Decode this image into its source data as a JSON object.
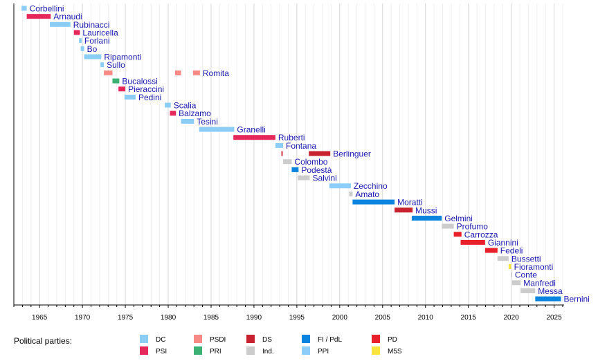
{
  "chart_data": {
    "type": "timeline",
    "xlim": [
      1962,
      2026
    ],
    "x_ticks": [
      1965,
      1970,
      1975,
      1980,
      1985,
      1990,
      1995,
      2000,
      2005,
      2010,
      2015,
      2020,
      2025
    ],
    "grid": "vertical, yearly",
    "parties": {
      "DC": "#8ccdf5",
      "PSI": "#e5275a",
      "PSDI": "#f88a85",
      "PRI": "#3bb273",
      "DS": "#c8212f",
      "Ind.": "#cccccc",
      "FI / PdL": "#0b84e0",
      "PPI": "#8ccdfa",
      "PD": "#e8202a",
      "M5S": "#fae33c"
    },
    "rows": [
      {
        "name": "Corbellini",
        "terms": [
          {
            "start": 1962.9,
            "end": 1963.5,
            "party": "DC"
          }
        ]
      },
      {
        "name": "Arnaudi",
        "terms": [
          {
            "start": 1963.5,
            "end": 1966.3,
            "party": "PSI"
          }
        ]
      },
      {
        "name": "Rubinacci",
        "terms": [
          {
            "start": 1966.2,
            "end": 1968.6,
            "party": "DC"
          }
        ]
      },
      {
        "name": "Lauricella",
        "terms": [
          {
            "start": 1969.0,
            "end": 1969.7,
            "party": "PSI"
          }
        ]
      },
      {
        "name": "Forlani",
        "terms": [
          {
            "start": 1969.6,
            "end": 1969.9,
            "party": "DC"
          }
        ]
      },
      {
        "name": "Bo",
        "terms": [
          {
            "start": 1969.8,
            "end": 1970.2,
            "party": "DC"
          }
        ]
      },
      {
        "name": "Ripamonti",
        "terms": [
          {
            "start": 1970.2,
            "end": 1972.2,
            "party": "DC"
          }
        ]
      },
      {
        "name": "Sullo",
        "terms": [
          {
            "start": 1972.1,
            "end": 1972.5,
            "party": "DC"
          }
        ]
      },
      {
        "name": "Romita",
        "terms": [
          {
            "start": 1972.5,
            "end": 1973.5,
            "party": "PSDI"
          },
          {
            "start": 1980.8,
            "end": 1981.5,
            "party": "PSDI"
          },
          {
            "start": 1982.9,
            "end": 1983.7,
            "party": "PSDI"
          }
        ]
      },
      {
        "name": "Bucalossi",
        "terms": [
          {
            "start": 1973.5,
            "end": 1974.3,
            "party": "PRI"
          }
        ]
      },
      {
        "name": "Pieraccini",
        "terms": [
          {
            "start": 1974.2,
            "end": 1975.0,
            "party": "PSI"
          }
        ]
      },
      {
        "name": "Pedini",
        "terms": [
          {
            "start": 1974.9,
            "end": 1976.2,
            "party": "DC"
          }
        ]
      },
      {
        "name": "Scalia",
        "terms": [
          {
            "start": 1979.6,
            "end": 1980.3,
            "party": "DC"
          }
        ]
      },
      {
        "name": "Balzamo",
        "terms": [
          {
            "start": 1980.2,
            "end": 1980.9,
            "party": "PSI"
          }
        ]
      },
      {
        "name": "Tesini",
        "terms": [
          {
            "start": 1981.5,
            "end": 1983.0,
            "party": "DC"
          }
        ]
      },
      {
        "name": "Granelli",
        "terms": [
          {
            "start": 1983.6,
            "end": 1987.7,
            "party": "DC"
          }
        ]
      },
      {
        "name": "Ruberti",
        "terms": [
          {
            "start": 1987.6,
            "end": 1992.5,
            "party": "PSI"
          }
        ]
      },
      {
        "name": "Fontana",
        "terms": [
          {
            "start": 1992.5,
            "end": 1993.4,
            "party": "DC"
          }
        ]
      },
      {
        "name": "Berlinguer",
        "terms": [
          {
            "start": 1993.2,
            "end": 1993.35,
            "party": "DS"
          },
          {
            "start": 1996.4,
            "end": 1998.9,
            "party": "DS"
          }
        ]
      },
      {
        "name": "Colombo",
        "terms": [
          {
            "start": 1993.4,
            "end": 1994.4,
            "party": "Ind."
          }
        ]
      },
      {
        "name": "Podestà",
        "terms": [
          {
            "start": 1994.4,
            "end": 1995.2,
            "party": "FI / PdL"
          }
        ]
      },
      {
        "name": "Salvini",
        "terms": [
          {
            "start": 1995.1,
            "end": 1996.5,
            "party": "Ind."
          }
        ]
      },
      {
        "name": "Zecchino",
        "terms": [
          {
            "start": 1998.8,
            "end": 2001.3,
            "party": "PPI"
          }
        ]
      },
      {
        "name": "Amato",
        "terms": [
          {
            "start": 2001.1,
            "end": 2001.5,
            "party": "Ind."
          }
        ]
      },
      {
        "name": "Moratti",
        "terms": [
          {
            "start": 2001.5,
            "end": 2006.4,
            "party": "FI / PdL"
          }
        ]
      },
      {
        "name": "Mussi",
        "terms": [
          {
            "start": 2006.4,
            "end": 2008.5,
            "party": "DS"
          }
        ]
      },
      {
        "name": "Gelmini",
        "terms": [
          {
            "start": 2008.4,
            "end": 2011.9,
            "party": "FI / PdL"
          }
        ]
      },
      {
        "name": "Profumo",
        "terms": [
          {
            "start": 2011.9,
            "end": 2013.3,
            "party": "Ind."
          }
        ]
      },
      {
        "name": "Carrozza",
        "terms": [
          {
            "start": 2013.3,
            "end": 2014.2,
            "party": "PD"
          }
        ]
      },
      {
        "name": "Giannini",
        "terms": [
          {
            "start": 2014.1,
            "end": 2016.95,
            "party": "PD"
          }
        ]
      },
      {
        "name": "Fedeli",
        "terms": [
          {
            "start": 2016.95,
            "end": 2018.4,
            "party": "PD"
          }
        ]
      },
      {
        "name": "Bussetti",
        "terms": [
          {
            "start": 2018.4,
            "end": 2019.7,
            "party": "Ind."
          }
        ]
      },
      {
        "name": "Fioramonti",
        "terms": [
          {
            "start": 2019.7,
            "end": 2020.0,
            "party": "M5S"
          }
        ]
      },
      {
        "name": "Conte",
        "terms": [
          {
            "start": 2020.0,
            "end": 2020.1,
            "party": "Ind."
          }
        ]
      },
      {
        "name": "Manfredi",
        "terms": [
          {
            "start": 2020.1,
            "end": 2021.1,
            "party": "Ind."
          }
        ]
      },
      {
        "name": "Messa",
        "terms": [
          {
            "start": 2021.1,
            "end": 2022.8,
            "party": "Ind."
          }
        ]
      },
      {
        "name": "Bernini",
        "terms": [
          {
            "start": 2022.8,
            "end": 2025.8,
            "party": "FI / PdL"
          }
        ]
      }
    ]
  },
  "legend": {
    "title": "Political parties:",
    "items": [
      "DC",
      "PSI",
      "PSDI",
      "PRI",
      "DS",
      "Ind.",
      "FI / PdL",
      "PPI",
      "PD",
      "M5S"
    ]
  }
}
